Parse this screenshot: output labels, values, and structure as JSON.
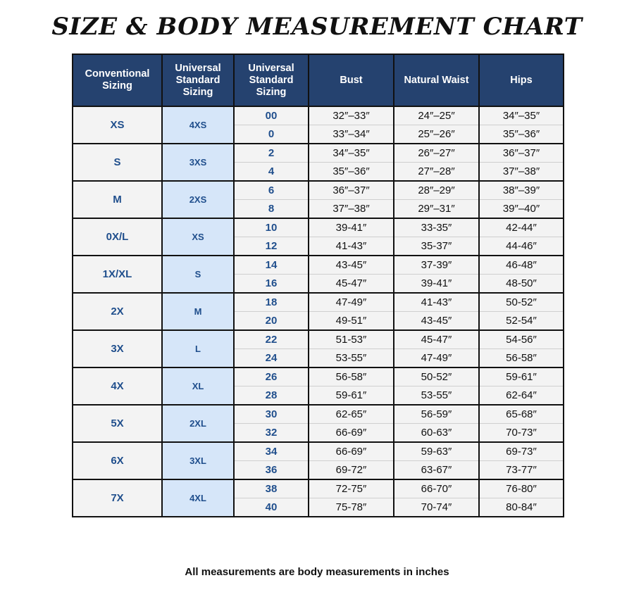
{
  "title": "SIZE & BODY MEASUREMENT CHART",
  "headers": [
    "Conventional Sizing",
    "Universal Standard Sizing",
    "Universal Standard Sizing",
    "Bust",
    "Natural Waist",
    "Hips"
  ],
  "groups": [
    {
      "conventional": "XS",
      "universal": "4XS",
      "rows": [
        {
          "us": "00",
          "bust": "32″–33″",
          "waist": "24″–25″",
          "hips": "34″–35″"
        },
        {
          "us": "0",
          "bust": "33″–34″",
          "waist": "25″–26″",
          "hips": "35″–36″"
        }
      ]
    },
    {
      "conventional": "S",
      "universal": "3XS",
      "rows": [
        {
          "us": "2",
          "bust": "34″–35″",
          "waist": "26″–27″",
          "hips": "36″–37″"
        },
        {
          "us": "4",
          "bust": "35″–36″",
          "waist": "27″–28″",
          "hips": "37″–38″"
        }
      ]
    },
    {
      "conventional": "M",
      "universal": "2XS",
      "rows": [
        {
          "us": "6",
          "bust": "36″–37″",
          "waist": "28″–29″",
          "hips": "38″–39″"
        },
        {
          "us": "8",
          "bust": "37″–38″",
          "waist": "29″–31″",
          "hips": "39″–40″"
        }
      ]
    },
    {
      "conventional": "0X/L",
      "universal": "XS",
      "rows": [
        {
          "us": "10",
          "bust": "39-41″",
          "waist": "33-35″",
          "hips": "42-44″"
        },
        {
          "us": "12",
          "bust": "41-43″",
          "waist": "35-37″",
          "hips": "44-46″"
        }
      ]
    },
    {
      "conventional": "1X/XL",
      "universal": "S",
      "rows": [
        {
          "us": "14",
          "bust": "43-45″",
          "waist": "37-39″",
          "hips": "46-48″"
        },
        {
          "us": "16",
          "bust": "45-47″",
          "waist": "39-41″",
          "hips": "48-50″"
        }
      ]
    },
    {
      "conventional": "2X",
      "universal": "M",
      "rows": [
        {
          "us": "18",
          "bust": "47-49″",
          "waist": "41-43″",
          "hips": "50-52″"
        },
        {
          "us": "20",
          "bust": "49-51″",
          "waist": "43-45″",
          "hips": "52-54″"
        }
      ]
    },
    {
      "conventional": "3X",
      "universal": "L",
      "rows": [
        {
          "us": "22",
          "bust": "51-53″",
          "waist": "45-47″",
          "hips": "54-56″"
        },
        {
          "us": "24",
          "bust": "53-55″",
          "waist": "47-49″",
          "hips": "56-58″"
        }
      ]
    },
    {
      "conventional": "4X",
      "universal": "XL",
      "rows": [
        {
          "us": "26",
          "bust": "56-58″",
          "waist": "50-52″",
          "hips": "59-61″"
        },
        {
          "us": "28",
          "bust": "59-61″",
          "waist": "53-55″",
          "hips": "62-64″"
        }
      ]
    },
    {
      "conventional": "5X",
      "universal": "2XL",
      "rows": [
        {
          "us": "30",
          "bust": "62-65″",
          "waist": "56-59″",
          "hips": "65-68″"
        },
        {
          "us": "32",
          "bust": "66-69″",
          "waist": "60-63″",
          "hips": "70-73″"
        }
      ]
    },
    {
      "conventional": "6X",
      "universal": "3XL",
      "rows": [
        {
          "us": "34",
          "bust": "66-69″",
          "waist": "59-63″",
          "hips": "69-73″"
        },
        {
          "us": "36",
          "bust": "69-72″",
          "waist": "63-67″",
          "hips": "73-77″"
        }
      ]
    },
    {
      "conventional": "7X",
      "universal": "4XL",
      "rows": [
        {
          "us": "38",
          "bust": "72-75″",
          "waist": "66-70″",
          "hips": "76-80″"
        },
        {
          "us": "40",
          "bust": "75-78″",
          "waist": "70-74″",
          "hips": "80-84″"
        }
      ]
    }
  ],
  "footnote": "All measurements are body measurements in inches",
  "colors": {
    "header_bg": "#25426f",
    "header_text": "#ffffff",
    "size_text": "#1f4e8c",
    "universal_col_bg": "#d6e6f9",
    "cell_bg": "#f3f3f3",
    "border": "#111111"
  }
}
